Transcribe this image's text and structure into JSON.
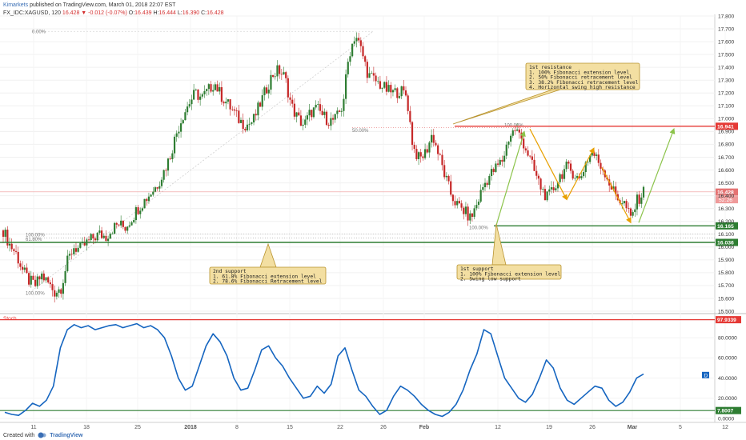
{
  "header": {
    "author": "Kimarkets",
    "published_line": "published on TradingView.com, March 01, 2018 22:07 EST",
    "symbol": "FX_IDC:XAGUSD, 120",
    "last": "16.428",
    "change": "▼ -0.012 (-0.07%)",
    "ohlc": {
      "o_label": "O:",
      "o": "16.439",
      "h_label": "H:",
      "h": "16.444",
      "l_label": "L:",
      "l": "16.390",
      "c_label": "C:",
      "c": "16.428"
    }
  },
  "footer": {
    "created_with": "Created with",
    "brand": "TradingView"
  },
  "colors": {
    "up": "#2e7d32",
    "down": "#c62828",
    "resistance": "#e53935",
    "support": "#2e7d32",
    "arrow_orange": "#e8a000",
    "arrow_green": "#8bc34a",
    "stoch": "#1565c0",
    "note_bg": "#f3dfa2",
    "note_border": "#b8932e"
  },
  "chart_data": [
    {
      "type": "candlestick",
      "title": "",
      "ylim": [
        15.5,
        17.8
      ],
      "y_ticks": [
        "17.800",
        "17.700",
        "17.600",
        "17.500",
        "17.400",
        "17.300",
        "17.200",
        "17.100",
        "17.000",
        "16.900",
        "16.800",
        "16.700",
        "16.600",
        "16.500",
        "16.400",
        "16.300",
        "16.200",
        "16.100",
        "16.000",
        "15.900",
        "15.800",
        "15.700",
        "15.600",
        "15.500"
      ],
      "x_tick_labels": [
        "11",
        "18",
        "25",
        "2018",
        "8",
        "15",
        "22",
        "26",
        "Feb",
        "12",
        "19",
        "26",
        "Mar",
        "5",
        "12"
      ],
      "close_path": [
        16.13,
        16.02,
        15.95,
        15.82,
        15.74,
        15.7,
        15.78,
        15.72,
        15.65,
        15.68,
        15.88,
        16.0,
        15.98,
        16.03,
        16.07,
        16.1,
        16.08,
        16.14,
        16.18,
        16.15,
        16.22,
        16.3,
        16.36,
        16.42,
        16.48,
        16.58,
        16.7,
        16.88,
        17.02,
        17.12,
        17.2,
        17.16,
        17.22,
        17.28,
        17.18,
        17.12,
        17.05,
        16.98,
        16.95,
        16.98,
        17.1,
        17.22,
        17.34,
        17.38,
        17.32,
        17.1,
        17.0,
        16.95,
        17.05,
        17.08,
        17.02,
        16.98,
        17.0,
        17.1,
        17.5,
        17.66,
        17.52,
        17.34,
        17.3,
        17.26,
        17.22,
        17.2,
        17.22,
        17.18,
        16.78,
        16.68,
        16.74,
        16.88,
        16.72,
        16.55,
        16.4,
        16.32,
        16.28,
        16.22,
        16.34,
        16.48,
        16.56,
        16.62,
        16.68,
        16.86,
        16.92,
        16.84,
        16.72,
        16.58,
        16.46,
        16.38,
        16.46,
        16.56,
        16.62,
        16.58,
        16.52,
        16.66,
        16.74,
        16.66,
        16.58,
        16.46,
        16.38,
        16.34,
        16.22,
        16.36,
        16.43
      ],
      "current_price_label": "16.428",
      "countdown_label": "52:26",
      "levels": [
        {
          "name": "1st resistance",
          "price": 16.941,
          "label": "16.941",
          "color": "#e53935"
        },
        {
          "name": "1st support",
          "price": 16.165,
          "label": "16.165",
          "color": "#2e7d32"
        },
        {
          "name": "2nd support",
          "price": 16.036,
          "label": "16.036",
          "color": "#2e7d32"
        }
      ],
      "fib_labels": [
        "0.00%",
        "50.00%",
        "100.00%",
        "61.80%",
        "100.00%",
        "100.00%",
        "100.00%"
      ],
      "annotations": [
        {
          "title": "1st resistance",
          "lines": [
            "1. 100% Fibonacci extension level",
            "2. 50% Fibonacci retracement level",
            "3. 38.2% Fibonacci retracement level",
            "4. Horizontal swing high resistance"
          ]
        },
        {
          "title": "2nd support",
          "lines": [
            "1. 61.8% Fibonacci extension level",
            "2. 78.6% Fibonacci Retracement level"
          ]
        },
        {
          "title": "1st support",
          "lines": [
            "1. 100% Fibonacci extension level",
            "2. Swing low support"
          ]
        }
      ]
    },
    {
      "type": "line",
      "title": "Stoch",
      "ylim": [
        0,
        100
      ],
      "y_ticks": [
        "80.0000",
        "60.0000",
        "40.0000",
        "20.0000",
        "0.0000"
      ],
      "upper_level": "97.9339",
      "lower_level": "7.8007",
      "cursor_marker": "D",
      "values": [
        6,
        4,
        3,
        8,
        15,
        12,
        18,
        32,
        70,
        88,
        93,
        90,
        92,
        88,
        90,
        92,
        93,
        90,
        92,
        94,
        90,
        92,
        88,
        80,
        62,
        40,
        28,
        32,
        52,
        72,
        84,
        76,
        62,
        40,
        28,
        30,
        48,
        68,
        72,
        60,
        52,
        40,
        30,
        20,
        22,
        32,
        25,
        34,
        62,
        70,
        48,
        28,
        22,
        12,
        4,
        8,
        22,
        32,
        28,
        22,
        14,
        8,
        4,
        2,
        6,
        14,
        28,
        48,
        64,
        88,
        84,
        62,
        40,
        30,
        20,
        16,
        24,
        40,
        58,
        50,
        30,
        18,
        14,
        20,
        26,
        32,
        30,
        18,
        12,
        16,
        26,
        40,
        44
      ]
    }
  ]
}
